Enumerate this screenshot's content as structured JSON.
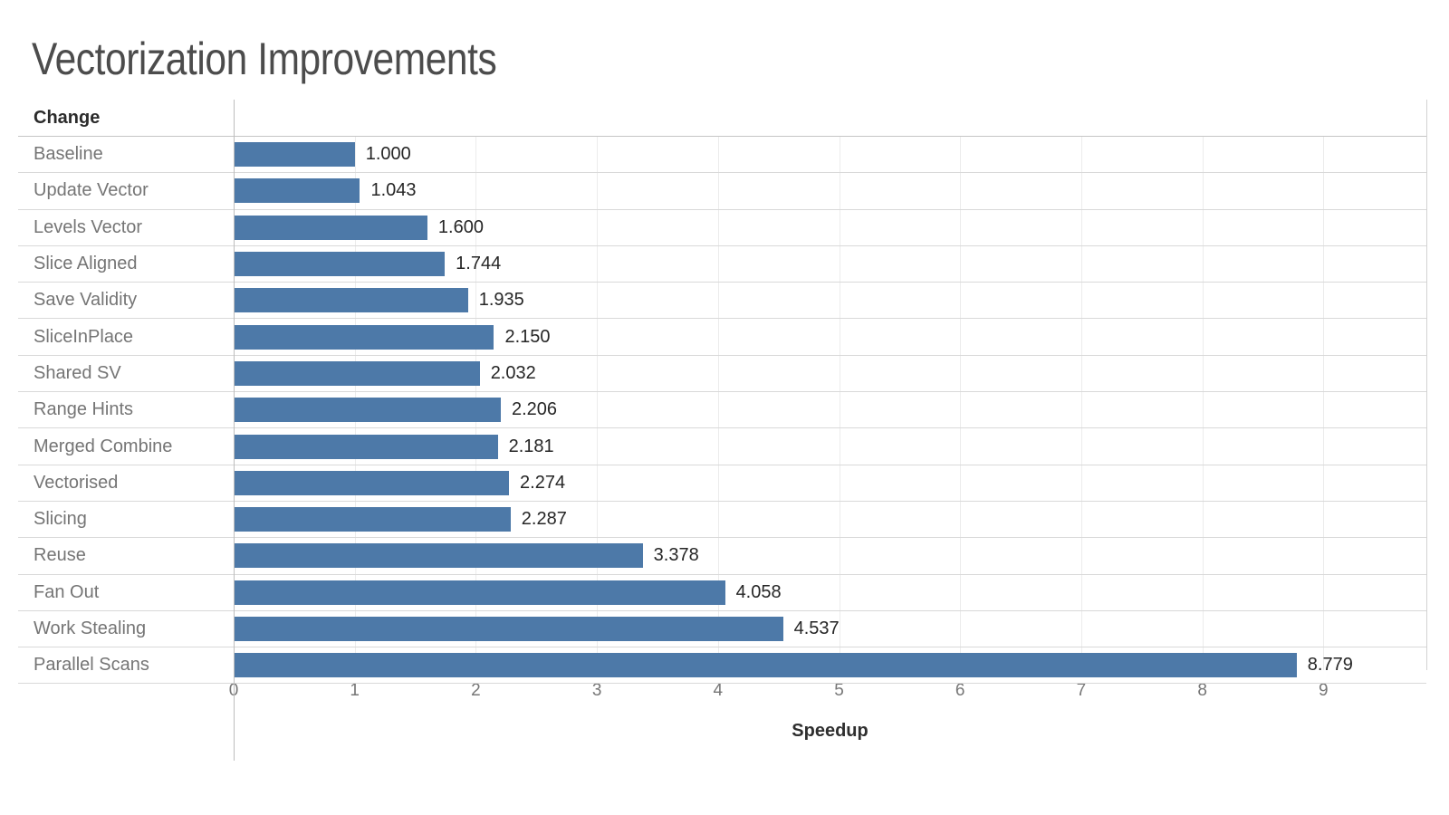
{
  "chart_data": {
    "type": "bar",
    "orientation": "horizontal",
    "title": "Vectorization Improvements",
    "row_header": "Change",
    "xlabel": "Speedup",
    "categories": [
      "Baseline",
      "Update Vector",
      "Levels Vector",
      "Slice Aligned",
      "Save Validity",
      "SliceInPlace",
      "Shared SV",
      "Range Hints",
      "Merged Combine",
      "Vectorised",
      "Slicing",
      "Reuse",
      "Fan Out",
      "Work Stealing",
      "Parallel Scans"
    ],
    "values": [
      1.0,
      1.043,
      1.6,
      1.744,
      1.935,
      2.15,
      2.032,
      2.206,
      2.181,
      2.274,
      2.287,
      3.378,
      4.058,
      4.537,
      8.779
    ],
    "value_labels": [
      "1.000",
      "1.043",
      "1.600",
      "1.744",
      "1.935",
      "2.150",
      "2.032",
      "2.206",
      "2.181",
      "2.274",
      "2.287",
      "3.378",
      "4.058",
      "4.537",
      "8.779"
    ],
    "x_ticks": [
      0,
      1,
      2,
      3,
      4,
      5,
      6,
      7,
      8,
      9
    ],
    "xlim": [
      0,
      9.85
    ],
    "grid": true,
    "legend": "none",
    "bar_color": "#4d79a8"
  }
}
